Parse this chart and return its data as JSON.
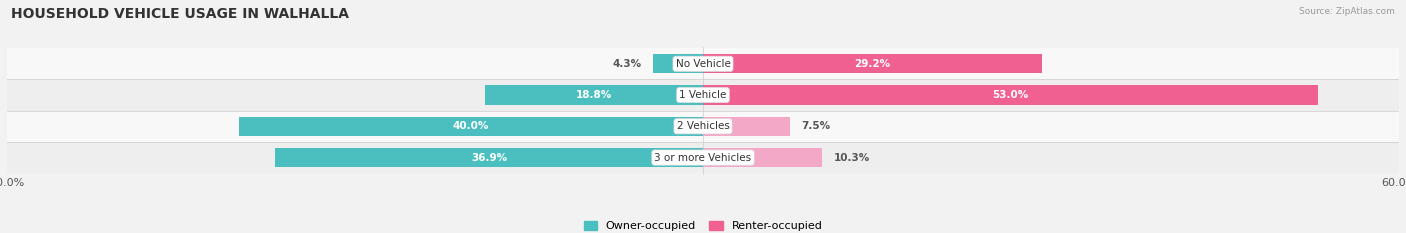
{
  "title": "HOUSEHOLD VEHICLE USAGE IN WALHALLA",
  "source": "Source: ZipAtlas.com",
  "categories": [
    "No Vehicle",
    "1 Vehicle",
    "2 Vehicles",
    "3 or more Vehicles"
  ],
  "owner_values": [
    4.3,
    18.8,
    40.0,
    36.9
  ],
  "renter_values": [
    29.2,
    53.0,
    7.5,
    10.3
  ],
  "owner_color": "#4bbfc0",
  "renter_color_dark": "#f06090",
  "renter_color_light": "#f4a8c8",
  "axis_max": 60.0,
  "bg_color": "#f2f2f2",
  "title_fontsize": 10,
  "legend_label_owner": "Owner-occupied",
  "legend_label_renter": "Renter-occupied",
  "bar_height": 0.62,
  "row_bg_colors": [
    "#f8f8f8",
    "#eeeeee"
  ]
}
